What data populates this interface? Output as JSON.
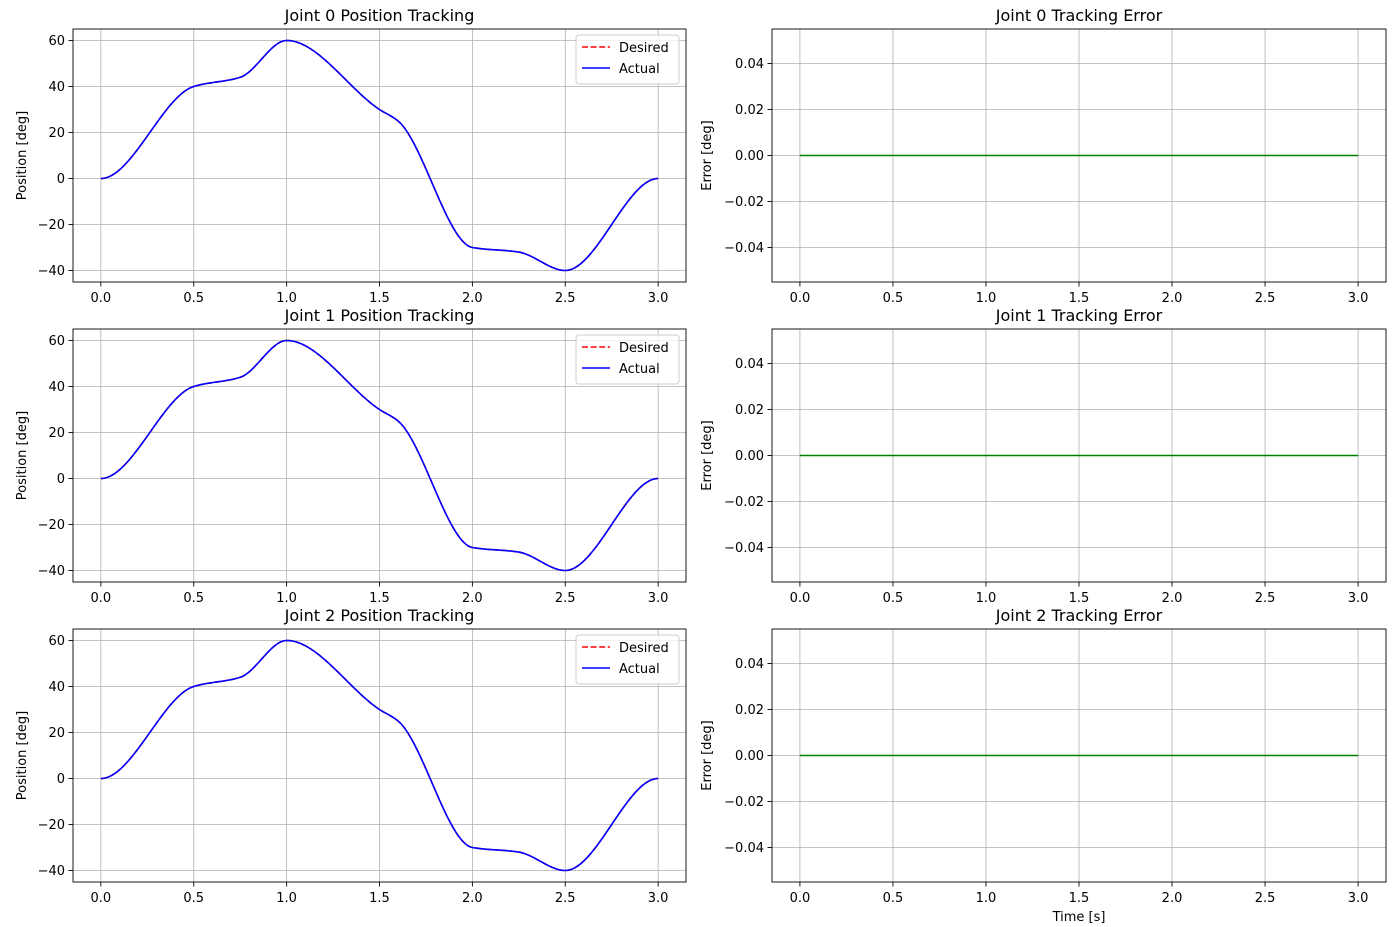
{
  "chart_data": [
    {
      "type": "line",
      "title": "Joint 0 Position Tracking",
      "xlabel": "",
      "ylabel": "Position [deg]",
      "xlim": [
        -0.15,
        3.15
      ],
      "ylim": [
        -45,
        65
      ],
      "xticks": [
        0.0,
        0.5,
        1.0,
        1.5,
        2.0,
        2.5,
        3.0
      ],
      "xtick_labels": [
        "0.0",
        "0.5",
        "1.0",
        "1.5",
        "2.0",
        "2.5",
        "3.0"
      ],
      "yticks": [
        -40,
        -20,
        0,
        20,
        40,
        60
      ],
      "ytick_labels": [
        "−40",
        "−20",
        "0",
        "20",
        "40",
        "60"
      ],
      "grid": true,
      "legend": "top-right",
      "series": [
        {
          "name": "Desired",
          "color": "#ff0000",
          "style": "dashed",
          "x": [
            0,
            0.5,
            0.75,
            1.0,
            1.5,
            1.6,
            2.0,
            2.25,
            2.5,
            3.0
          ],
          "values": [
            0,
            40,
            44,
            60,
            30,
            25,
            -30,
            -32,
            -40,
            0
          ]
        },
        {
          "name": "Actual",
          "color": "#0000ff",
          "style": "solid",
          "x": [
            0,
            0.5,
            0.75,
            1.0,
            1.5,
            1.6,
            2.0,
            2.25,
            2.5,
            3.0
          ],
          "values": [
            0,
            40,
            44,
            60,
            30,
            25,
            -30,
            -32,
            -40,
            0
          ]
        }
      ]
    },
    {
      "type": "line",
      "title": "Joint 0 Tracking Error",
      "xlabel": "",
      "ylabel": "Error [deg]",
      "xlim": [
        -0.15,
        3.15
      ],
      "ylim": [
        -0.055,
        0.055
      ],
      "xticks": [
        0.0,
        0.5,
        1.0,
        1.5,
        2.0,
        2.5,
        3.0
      ],
      "xtick_labels": [
        "0.0",
        "0.5",
        "1.0",
        "1.5",
        "2.0",
        "2.5",
        "3.0"
      ],
      "yticks": [
        -0.04,
        -0.02,
        0.0,
        0.02,
        0.04
      ],
      "ytick_labels": [
        "−0.04",
        "−0.02",
        "0.00",
        "0.02",
        "0.04"
      ],
      "grid": true,
      "series": [
        {
          "color": "#008000",
          "style": "solid",
          "x": [
            0,
            3.0
          ],
          "values": [
            0,
            0
          ]
        }
      ]
    },
    {
      "type": "line",
      "title": "Joint 1 Position Tracking",
      "xlabel": "",
      "ylabel": "Position [deg]",
      "xlim": [
        -0.15,
        3.15
      ],
      "ylim": [
        -45,
        65
      ],
      "xticks": [
        0.0,
        0.5,
        1.0,
        1.5,
        2.0,
        2.5,
        3.0
      ],
      "xtick_labels": [
        "0.0",
        "0.5",
        "1.0",
        "1.5",
        "2.0",
        "2.5",
        "3.0"
      ],
      "yticks": [
        -40,
        -20,
        0,
        20,
        40,
        60
      ],
      "ytick_labels": [
        "−40",
        "−20",
        "0",
        "20",
        "40",
        "60"
      ],
      "grid": true,
      "legend": "top-right",
      "series": [
        {
          "name": "Desired",
          "color": "#ff0000",
          "style": "dashed",
          "x": [
            0,
            0.5,
            0.75,
            1.0,
            1.5,
            1.6,
            2.0,
            2.25,
            2.5,
            3.0
          ],
          "values": [
            0,
            40,
            44,
            60,
            30,
            25,
            -30,
            -32,
            -40,
            0
          ]
        },
        {
          "name": "Actual",
          "color": "#0000ff",
          "style": "solid",
          "x": [
            0,
            0.5,
            0.75,
            1.0,
            1.5,
            1.6,
            2.0,
            2.25,
            2.5,
            3.0
          ],
          "values": [
            0,
            40,
            44,
            60,
            30,
            25,
            -30,
            -32,
            -40,
            0
          ]
        }
      ]
    },
    {
      "type": "line",
      "title": "Joint 1 Tracking Error",
      "xlabel": "",
      "ylabel": "Error [deg]",
      "xlim": [
        -0.15,
        3.15
      ],
      "ylim": [
        -0.055,
        0.055
      ],
      "xticks": [
        0.0,
        0.5,
        1.0,
        1.5,
        2.0,
        2.5,
        3.0
      ],
      "xtick_labels": [
        "0.0",
        "0.5",
        "1.0",
        "1.5",
        "2.0",
        "2.5",
        "3.0"
      ],
      "yticks": [
        -0.04,
        -0.02,
        0.0,
        0.02,
        0.04
      ],
      "ytick_labels": [
        "−0.04",
        "−0.02",
        "0.00",
        "0.02",
        "0.04"
      ],
      "grid": true,
      "series": [
        {
          "color": "#008000",
          "style": "solid",
          "x": [
            0,
            3.0
          ],
          "values": [
            0,
            0
          ]
        }
      ]
    },
    {
      "type": "line",
      "title": "Joint 2 Position Tracking",
      "xlabel": "",
      "ylabel": "Position [deg]",
      "xlim": [
        -0.15,
        3.15
      ],
      "ylim": [
        -45,
        65
      ],
      "xticks": [
        0.0,
        0.5,
        1.0,
        1.5,
        2.0,
        2.5,
        3.0
      ],
      "xtick_labels": [
        "0.0",
        "0.5",
        "1.0",
        "1.5",
        "2.0",
        "2.5",
        "3.0"
      ],
      "yticks": [
        -40,
        -20,
        0,
        20,
        40,
        60
      ],
      "ytick_labels": [
        "−40",
        "−20",
        "0",
        "20",
        "40",
        "60"
      ],
      "grid": true,
      "legend": "top-right",
      "series": [
        {
          "name": "Desired",
          "color": "#ff0000",
          "style": "dashed",
          "x": [
            0,
            0.5,
            0.75,
            1.0,
            1.5,
            1.6,
            2.0,
            2.25,
            2.5,
            3.0
          ],
          "values": [
            0,
            40,
            44,
            60,
            30,
            25,
            -30,
            -32,
            -40,
            0
          ]
        },
        {
          "name": "Actual",
          "color": "#0000ff",
          "style": "solid",
          "x": [
            0,
            0.5,
            0.75,
            1.0,
            1.5,
            1.6,
            2.0,
            2.25,
            2.5,
            3.0
          ],
          "values": [
            0,
            40,
            44,
            60,
            30,
            25,
            -30,
            -32,
            -40,
            0
          ]
        }
      ]
    },
    {
      "type": "line",
      "title": "Joint 2 Tracking Error",
      "xlabel": "Time [s]",
      "ylabel": "Error [deg]",
      "xlim": [
        -0.15,
        3.15
      ],
      "ylim": [
        -0.055,
        0.055
      ],
      "xticks": [
        0.0,
        0.5,
        1.0,
        1.5,
        2.0,
        2.5,
        3.0
      ],
      "xtick_labels": [
        "0.0",
        "0.5",
        "1.0",
        "1.5",
        "2.0",
        "2.5",
        "3.0"
      ],
      "yticks": [
        -0.04,
        -0.02,
        0.0,
        0.02,
        0.04
      ],
      "ytick_labels": [
        "−0.04",
        "−0.02",
        "0.00",
        "0.02",
        "0.04"
      ],
      "grid": true,
      "series": [
        {
          "color": "#008000",
          "style": "solid",
          "x": [
            0,
            3.0
          ],
          "values": [
            0,
            0
          ]
        }
      ]
    }
  ]
}
